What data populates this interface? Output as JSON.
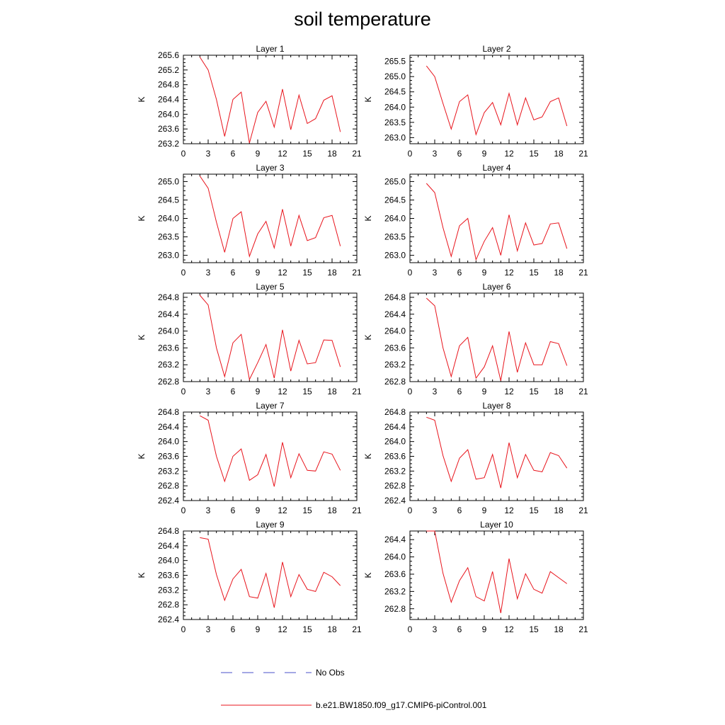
{
  "title": "soil temperature",
  "colors": {
    "model": "#e8141c",
    "obs": "#4a50c8",
    "axis": "#000000"
  },
  "legend": [
    {
      "name": "No Obs",
      "style": "dashed",
      "color": "#4a50c8"
    },
    {
      "name": "b.e21.BW1850.f09_g17.CMIP6-piControl.001",
      "style": "solid",
      "color": "#e8141c"
    }
  ],
  "chart_data": [
    {
      "type": "line",
      "title": "Layer 1",
      "ylabel": "K",
      "xlim": [
        0,
        21
      ],
      "ylim": [
        263.2,
        265.6
      ],
      "xticks": [
        0,
        3,
        6,
        9,
        12,
        15,
        18,
        21
      ],
      "yticks": [
        "263.2",
        "263.6",
        "264.0",
        "264.4",
        "264.8",
        "265.2",
        "265.6"
      ],
      "series": [
        {
          "name": "b.e21.BW1850.f09_g17.CMIP6-piControl.001",
          "x": [
            2,
            3,
            4,
            5,
            6,
            7,
            8,
            9,
            10,
            11,
            12,
            13,
            14,
            15,
            16,
            17,
            18,
            19
          ],
          "y": [
            265.55,
            265.2,
            264.4,
            263.4,
            264.4,
            264.6,
            263.22,
            264.05,
            264.35,
            263.65,
            264.68,
            263.58,
            264.52,
            263.75,
            263.88,
            264.38,
            264.5,
            263.52
          ]
        }
      ]
    },
    {
      "type": "line",
      "title": "Layer 2",
      "ylabel": "K",
      "xlim": [
        0,
        21
      ],
      "ylim": [
        262.8,
        265.7
      ],
      "xticks": [
        0,
        3,
        6,
        9,
        12,
        15,
        18,
        21
      ],
      "yticks": [
        "263.0",
        "263.5",
        "264.0",
        "264.5",
        "265.0",
        "265.5"
      ],
      "series": [
        {
          "name": "b.e21.BW1850.f09_g17.CMIP6-piControl.001",
          "x": [
            2,
            3,
            4,
            5,
            6,
            7,
            8,
            9,
            10,
            11,
            12,
            13,
            14,
            15,
            16,
            17,
            18,
            19
          ],
          "y": [
            265.35,
            265.0,
            264.12,
            263.28,
            264.18,
            264.4,
            263.1,
            263.82,
            264.15,
            263.42,
            264.45,
            263.42,
            264.3,
            263.58,
            263.68,
            264.18,
            264.3,
            263.38
          ]
        }
      ]
    },
    {
      "type": "line",
      "title": "Layer 3",
      "ylabel": "K",
      "xlim": [
        0,
        21
      ],
      "ylim": [
        262.8,
        265.2
      ],
      "xticks": [
        0,
        3,
        6,
        9,
        12,
        15,
        18,
        21
      ],
      "yticks": [
        "263.0",
        "263.5",
        "264.0",
        "264.5",
        "265.0"
      ],
      "series": [
        {
          "name": "b.e21.BW1850.f09_g17.CMIP6-piControl.001",
          "x": [
            2,
            3,
            4,
            5,
            6,
            7,
            8,
            9,
            10,
            11,
            12,
            13,
            14,
            15,
            16,
            17,
            18,
            19
          ],
          "y": [
            265.15,
            264.82,
            263.9,
            263.08,
            264.0,
            264.18,
            262.97,
            263.58,
            263.92,
            263.2,
            264.25,
            263.25,
            264.08,
            263.4,
            263.48,
            264.02,
            264.08,
            263.25
          ]
        }
      ]
    },
    {
      "type": "line",
      "title": "Layer 4",
      "ylabel": "K",
      "xlim": [
        0,
        21
      ],
      "ylim": [
        262.8,
        265.2
      ],
      "xticks": [
        0,
        3,
        6,
        9,
        12,
        15,
        18,
        21
      ],
      "yticks": [
        "263.0",
        "263.5",
        "264.0",
        "264.5",
        "265.0"
      ],
      "series": [
        {
          "name": "b.e21.BW1850.f09_g17.CMIP6-piControl.001",
          "x": [
            2,
            3,
            4,
            5,
            6,
            7,
            8,
            9,
            10,
            11,
            12,
            13,
            14,
            15,
            16,
            17,
            18,
            19
          ],
          "y": [
            264.95,
            264.7,
            263.75,
            262.97,
            263.8,
            264.0,
            262.88,
            263.38,
            263.75,
            263.0,
            264.1,
            263.12,
            263.88,
            263.28,
            263.32,
            263.85,
            263.88,
            263.18
          ]
        }
      ]
    },
    {
      "type": "line",
      "title": "Layer 5",
      "ylabel": "K",
      "xlim": [
        0,
        21
      ],
      "ylim": [
        262.8,
        264.9
      ],
      "xticks": [
        0,
        3,
        6,
        9,
        12,
        15,
        18,
        21
      ],
      "yticks": [
        "262.8",
        "263.2",
        "263.6",
        "264.0",
        "264.4",
        "264.8"
      ],
      "series": [
        {
          "name": "b.e21.BW1850.f09_g17.CMIP6-piControl.001",
          "x": [
            2,
            3,
            4,
            5,
            6,
            7,
            8,
            9,
            10,
            11,
            12,
            13,
            14,
            15,
            16,
            17,
            18,
            19
          ],
          "y": [
            264.85,
            264.62,
            263.6,
            262.92,
            263.72,
            263.92,
            262.85,
            263.25,
            263.68,
            262.88,
            264.03,
            263.05,
            263.78,
            263.22,
            263.25,
            263.79,
            263.78,
            263.15
          ]
        }
      ]
    },
    {
      "type": "line",
      "title": "Layer 6",
      "ylabel": "K",
      "xlim": [
        0,
        21
      ],
      "ylim": [
        262.8,
        264.9
      ],
      "xticks": [
        0,
        3,
        6,
        9,
        12,
        15,
        18,
        21
      ],
      "yticks": [
        "262.8",
        "263.2",
        "263.6",
        "264.0",
        "264.4",
        "264.8"
      ],
      "series": [
        {
          "name": "b.e21.BW1850.f09_g17.CMIP6-piControl.001",
          "x": [
            2,
            3,
            4,
            5,
            6,
            7,
            8,
            9,
            10,
            11,
            12,
            13,
            14,
            15,
            16,
            17,
            18,
            19
          ],
          "y": [
            264.78,
            264.6,
            263.6,
            262.92,
            263.65,
            263.85,
            262.88,
            263.15,
            263.65,
            262.82,
            263.99,
            263.02,
            263.72,
            263.2,
            263.2,
            263.75,
            263.7,
            263.18
          ]
        }
      ]
    },
    {
      "type": "line",
      "title": "Layer 7",
      "ylabel": "K",
      "xlim": [
        0,
        21
      ],
      "ylim": [
        262.4,
        264.8
      ],
      "xticks": [
        0,
        3,
        6,
        9,
        12,
        15,
        18,
        21
      ],
      "yticks": [
        "262.4",
        "262.8",
        "263.2",
        "263.6",
        "264.0",
        "264.4",
        "264.8"
      ],
      "series": [
        {
          "name": "b.e21.BW1850.f09_g17.CMIP6-piControl.001",
          "x": [
            2,
            3,
            4,
            5,
            6,
            7,
            8,
            9,
            10,
            11,
            12,
            13,
            14,
            15,
            16,
            17,
            18,
            19
          ],
          "y": [
            264.7,
            264.58,
            263.6,
            262.92,
            263.6,
            263.8,
            262.95,
            263.1,
            263.65,
            262.78,
            263.98,
            263.02,
            263.67,
            263.22,
            263.2,
            263.72,
            263.66,
            263.22
          ]
        }
      ]
    },
    {
      "type": "line",
      "title": "Layer 8",
      "ylabel": "K",
      "xlim": [
        0,
        21
      ],
      "ylim": [
        262.4,
        264.8
      ],
      "xticks": [
        0,
        3,
        6,
        9,
        12,
        15,
        18,
        21
      ],
      "yticks": [
        "262.4",
        "262.8",
        "263.2",
        "263.6",
        "264.0",
        "264.4",
        "264.8"
      ],
      "series": [
        {
          "name": "b.e21.BW1850.f09_g17.CMIP6-piControl.001",
          "x": [
            2,
            3,
            4,
            5,
            6,
            7,
            8,
            9,
            10,
            11,
            12,
            13,
            14,
            15,
            16,
            17,
            18,
            19
          ],
          "y": [
            264.66,
            264.58,
            263.62,
            262.92,
            263.55,
            263.78,
            262.98,
            263.02,
            263.65,
            262.74,
            263.97,
            263.02,
            263.65,
            263.22,
            263.18,
            263.7,
            263.62,
            263.28
          ]
        }
      ]
    },
    {
      "type": "line",
      "title": "Layer 9",
      "ylabel": "K",
      "xlim": [
        0,
        21
      ],
      "ylim": [
        262.4,
        264.8
      ],
      "xticks": [
        0,
        3,
        6,
        9,
        12,
        15,
        18,
        21
      ],
      "yticks": [
        "262.4",
        "262.8",
        "263.2",
        "263.6",
        "264.0",
        "264.4",
        "264.8"
      ],
      "series": [
        {
          "name": "b.e21.BW1850.f09_g17.CMIP6-piControl.001",
          "x": [
            2,
            3,
            4,
            5,
            6,
            7,
            8,
            9,
            10,
            11,
            12,
            13,
            14,
            15,
            16,
            17,
            18,
            19
          ],
          "y": [
            264.62,
            264.58,
            263.62,
            262.92,
            263.5,
            263.76,
            263.02,
            262.98,
            263.65,
            262.72,
            263.96,
            263.02,
            263.62,
            263.22,
            263.16,
            263.68,
            263.56,
            263.32
          ]
        }
      ]
    },
    {
      "type": "line",
      "title": "Layer 10",
      "ylabel": "K",
      "xlim": [
        0,
        21
      ],
      "ylim": [
        262.55,
        264.6
      ],
      "xticks": [
        0,
        3,
        6,
        9,
        12,
        15,
        18,
        21
      ],
      "yticks": [
        "262.8",
        "263.2",
        "263.6",
        "264.0",
        "264.4"
      ],
      "series": [
        {
          "name": "b.e21.BW1850.f09_g17.CMIP6-piControl.001",
          "x": [
            2,
            3,
            4,
            5,
            6,
            7,
            8,
            9,
            10,
            11,
            12,
            13,
            14,
            15,
            16,
            17,
            18,
            19
          ],
          "y": [
            264.6,
            264.6,
            263.62,
            262.95,
            263.45,
            263.75,
            263.08,
            262.98,
            263.66,
            262.7,
            263.96,
            263.03,
            263.61,
            263.25,
            263.16,
            263.66,
            263.52,
            263.38
          ]
        }
      ]
    }
  ]
}
